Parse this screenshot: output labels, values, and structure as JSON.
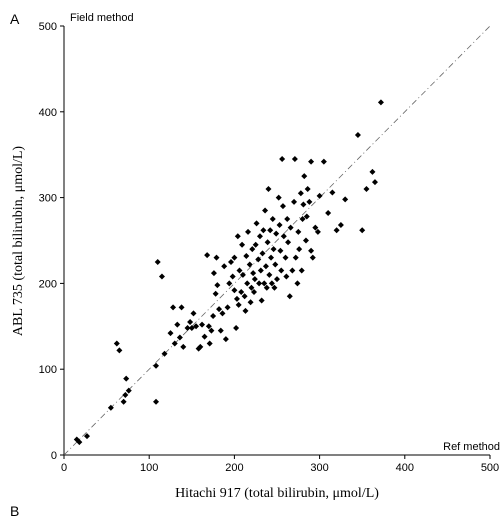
{
  "panel_labels": {
    "top": "A",
    "bottom": "B"
  },
  "chart_data": {
    "type": "scatter",
    "title": "",
    "xlabel": "Hitachi 917 (total bilirubin, μmol/L)",
    "ylabel": "ABL 735 (total bilirubin, μmol/L)",
    "xlim": [
      0,
      500
    ],
    "ylim": [
      0,
      500
    ],
    "x_ticks": [
      0,
      100,
      200,
      300,
      400,
      500
    ],
    "y_ticks": [
      0,
      100,
      200,
      300,
      400,
      500
    ],
    "grid": false,
    "corner_labels": {
      "y_axis_top": "Field method",
      "x_axis_right": "Ref method"
    },
    "identity_line": {
      "from": [
        0,
        0
      ],
      "to": [
        500,
        500
      ],
      "style": "dash-dot"
    },
    "series": [
      {
        "points": [
          [
            15,
            18
          ],
          [
            18,
            15
          ],
          [
            27,
            22
          ],
          [
            55,
            55
          ],
          [
            62,
            130
          ],
          [
            65,
            122
          ],
          [
            70,
            62
          ],
          [
            72,
            70
          ],
          [
            73,
            89
          ],
          [
            76,
            75
          ],
          [
            108,
            62
          ],
          [
            108,
            104
          ],
          [
            110,
            225
          ],
          [
            115,
            208
          ],
          [
            118,
            118
          ],
          [
            125,
            142
          ],
          [
            128,
            172
          ],
          [
            130,
            130
          ],
          [
            133,
            152
          ],
          [
            136,
            137
          ],
          [
            138,
            172
          ],
          [
            140,
            126
          ],
          [
            145,
            148
          ],
          [
            148,
            155
          ],
          [
            150,
            148
          ],
          [
            152,
            165
          ],
          [
            155,
            150
          ],
          [
            158,
            124
          ],
          [
            160,
            126
          ],
          [
            162,
            152
          ],
          [
            165,
            138
          ],
          [
            168,
            233
          ],
          [
            170,
            150
          ],
          [
            171,
            130
          ],
          [
            173,
            145
          ],
          [
            175,
            162
          ],
          [
            176,
            212
          ],
          [
            178,
            188
          ],
          [
            179,
            230
          ],
          [
            180,
            198
          ],
          [
            182,
            170
          ],
          [
            184,
            145
          ],
          [
            186,
            165
          ],
          [
            188,
            220
          ],
          [
            190,
            135
          ],
          [
            192,
            172
          ],
          [
            194,
            200
          ],
          [
            196,
            225
          ],
          [
            198,
            208
          ],
          [
            200,
            192
          ],
          [
            200,
            230
          ],
          [
            202,
            148
          ],
          [
            203,
            182
          ],
          [
            204,
            255
          ],
          [
            205,
            175
          ],
          [
            206,
            215
          ],
          [
            208,
            190
          ],
          [
            209,
            245
          ],
          [
            210,
            210
          ],
          [
            212,
            185
          ],
          [
            213,
            168
          ],
          [
            214,
            232
          ],
          [
            215,
            200
          ],
          [
            216,
            260
          ],
          [
            218,
            222
          ],
          [
            219,
            178
          ],
          [
            220,
            195
          ],
          [
            221,
            240
          ],
          [
            222,
            212
          ],
          [
            223,
            190
          ],
          [
            224,
            205
          ],
          [
            225,
            245
          ],
          [
            226,
            270
          ],
          [
            228,
            228
          ],
          [
            229,
            200
          ],
          [
            230,
            255
          ],
          [
            231,
            215
          ],
          [
            232,
            180
          ],
          [
            233,
            235
          ],
          [
            234,
            262
          ],
          [
            235,
            200
          ],
          [
            236,
            285
          ],
          [
            237,
            220
          ],
          [
            238,
            195
          ],
          [
            239,
            248
          ],
          [
            240,
            310
          ],
          [
            241,
            210
          ],
          [
            242,
            262
          ],
          [
            243,
            230
          ],
          [
            244,
            200
          ],
          [
            245,
            275
          ],
          [
            246,
            240
          ],
          [
            247,
            195
          ],
          [
            248,
            222
          ],
          [
            249,
            258
          ],
          [
            250,
            205
          ],
          [
            252,
            300
          ],
          [
            253,
            268
          ],
          [
            254,
            238
          ],
          [
            255,
            215
          ],
          [
            256,
            345
          ],
          [
            257,
            290
          ],
          [
            258,
            255
          ],
          [
            260,
            230
          ],
          [
            261,
            208
          ],
          [
            262,
            275
          ],
          [
            263,
            248
          ],
          [
            265,
            185
          ],
          [
            266,
            265
          ],
          [
            268,
            215
          ],
          [
            270,
            295
          ],
          [
            271,
            345
          ],
          [
            272,
            230
          ],
          [
            274,
            200
          ],
          [
            275,
            260
          ],
          [
            276,
            240
          ],
          [
            278,
            305
          ],
          [
            279,
            215
          ],
          [
            280,
            275
          ],
          [
            281,
            292
          ],
          [
            282,
            325
          ],
          [
            284,
            250
          ],
          [
            285,
            278
          ],
          [
            286,
            310
          ],
          [
            288,
            295
          ],
          [
            290,
            238
          ],
          [
            290,
            342
          ],
          [
            292,
            230
          ],
          [
            295,
            265
          ],
          [
            298,
            260
          ],
          [
            300,
            302
          ],
          [
            305,
            342
          ],
          [
            310,
            282
          ],
          [
            315,
            306
          ],
          [
            320,
            262
          ],
          [
            325,
            268
          ],
          [
            330,
            298
          ],
          [
            345,
            373
          ],
          [
            350,
            262
          ],
          [
            355,
            310
          ],
          [
            362,
            330
          ],
          [
            365,
            318
          ],
          [
            372,
            411
          ]
        ]
      }
    ]
  }
}
